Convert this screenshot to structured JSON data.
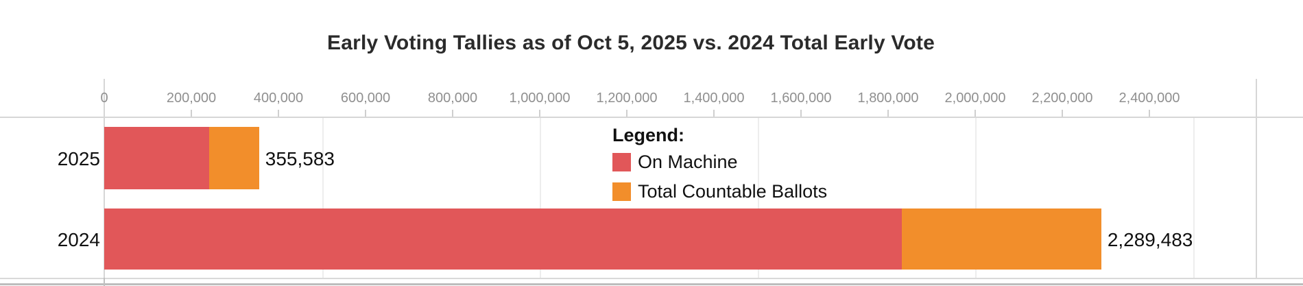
{
  "title": "Early Voting Tallies as of Oct 5, 2025 vs. 2024 Total Early Vote",
  "legend": {
    "heading": "Legend:",
    "items": [
      {
        "label": "On Machine",
        "color": "#E15759"
      },
      {
        "label": "Total Countable Ballots",
        "color": "#F28E2B"
      }
    ]
  },
  "chart_data": {
    "type": "bar",
    "orientation": "horizontal",
    "stacked": true,
    "title": "Early Voting Tallies as of Oct 5, 2025 vs. 2024 Total Early Vote",
    "xlabel": "",
    "ylabel": "",
    "categories": [
      "2025",
      "2024"
    ],
    "series": [
      {
        "name": "On Machine",
        "color": "#E15759",
        "values": [
          241000,
          1831000
        ]
      },
      {
        "name": "Total Countable Ballots",
        "color": "#F28E2B",
        "values": [
          114583,
          458483
        ]
      }
    ],
    "totals": [
      355583,
      2289483
    ],
    "total_labels": [
      "355,583",
      "2,289,483"
    ],
    "axis": {
      "position": "top",
      "min": 0,
      "max": 2400000,
      "tick_interval": 200000,
      "tick_labels": [
        "0",
        "200,000",
        "400,000",
        "600,000",
        "800,000",
        "1,000,000",
        "1,200,000",
        "1,400,000",
        "1,600,000",
        "1,800,000",
        "2,000,000",
        "2,200,000",
        "2,400,000"
      ]
    },
    "grid": true,
    "gridline_interval": 500000,
    "legend_position": "inside-plot-upper-middle",
    "colors": {
      "on_machine": "#E15759",
      "total_countable": "#F28E2B",
      "tick_label": "#8f8f8f",
      "gridline": "#ededed",
      "axis_line": "#d6d6d6",
      "text": "#111111"
    }
  }
}
